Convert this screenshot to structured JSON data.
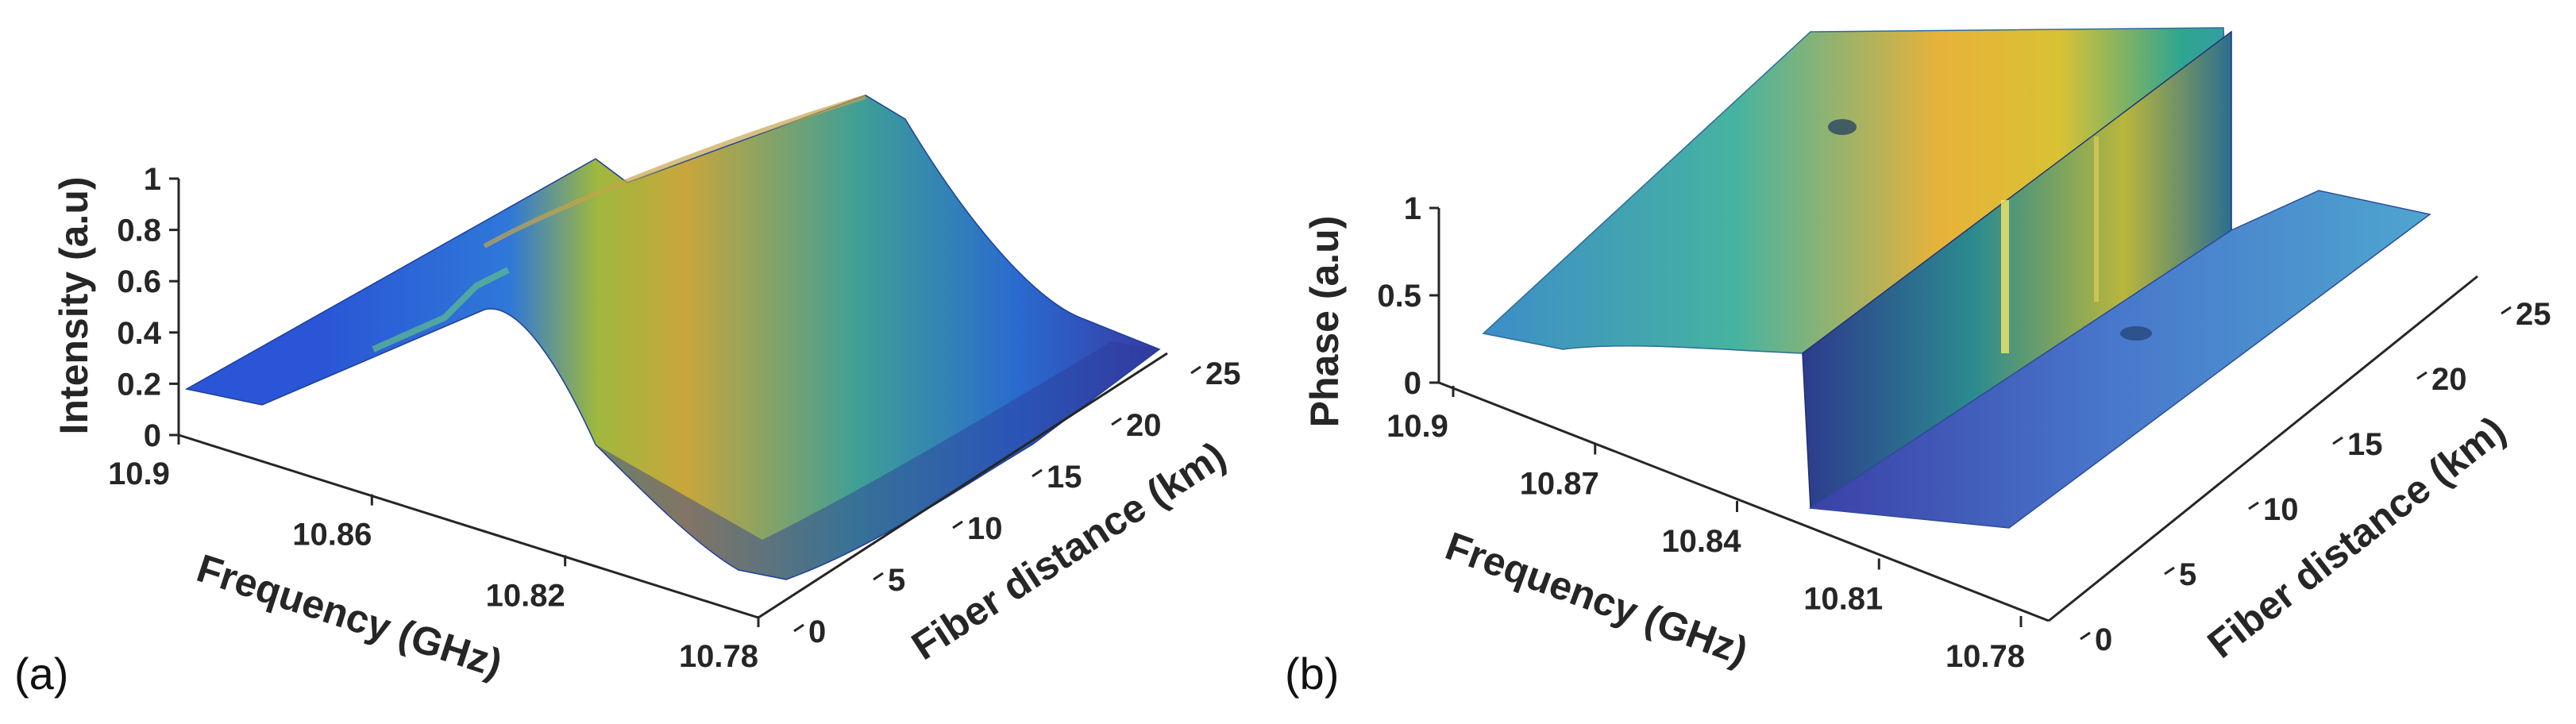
{
  "chart_data": [
    {
      "type": "surface3d",
      "panel_label": "(a)",
      "zlabel": "Intensity (a.u)",
      "xlabel": "Frequency (GHz)",
      "ylabel": "Fiber distance (km)",
      "frequency_ticks": [
        "10.9",
        "10.86",
        "10.82",
        "10.78"
      ],
      "distance_ticks": [
        "0",
        "5",
        "10",
        "15",
        "20",
        "25"
      ],
      "z_ticks": [
        "0",
        "0.2",
        "0.4",
        "0.6",
        "0.8",
        "1"
      ],
      "xlim": [
        10.78,
        10.9
      ],
      "ylim": [
        0,
        25
      ],
      "zlim": [
        0,
        1
      ],
      "surface": {
        "shape": "brillouin-gain-peak",
        "peak_frequency_ghz": 10.845,
        "peak_value": 1.0,
        "linewidth_ghz": 0.03,
        "baseline": 0.15,
        "colormap": "parula"
      }
    },
    {
      "type": "surface3d",
      "panel_label": "(b)",
      "zlabel": "Phase (a.u)",
      "xlabel": "Frequency (GHz)",
      "ylabel": "Fiber distance (km)",
      "frequency_ticks": [
        "10.9",
        "10.87",
        "10.84",
        "10.81",
        "10.78"
      ],
      "distance_ticks": [
        "0",
        "5",
        "10",
        "15",
        "20",
        "25"
      ],
      "z_ticks": [
        "0",
        "0.5",
        "1"
      ],
      "xlim": [
        10.78,
        10.9
      ],
      "ylim": [
        0,
        25
      ],
      "zlim": [
        0,
        1
      ],
      "surface": {
        "shape": "phase-step",
        "step_frequency_ghz": 10.83,
        "high_value": 1.0,
        "low_value": 0.25,
        "colormap": "parula"
      }
    }
  ]
}
